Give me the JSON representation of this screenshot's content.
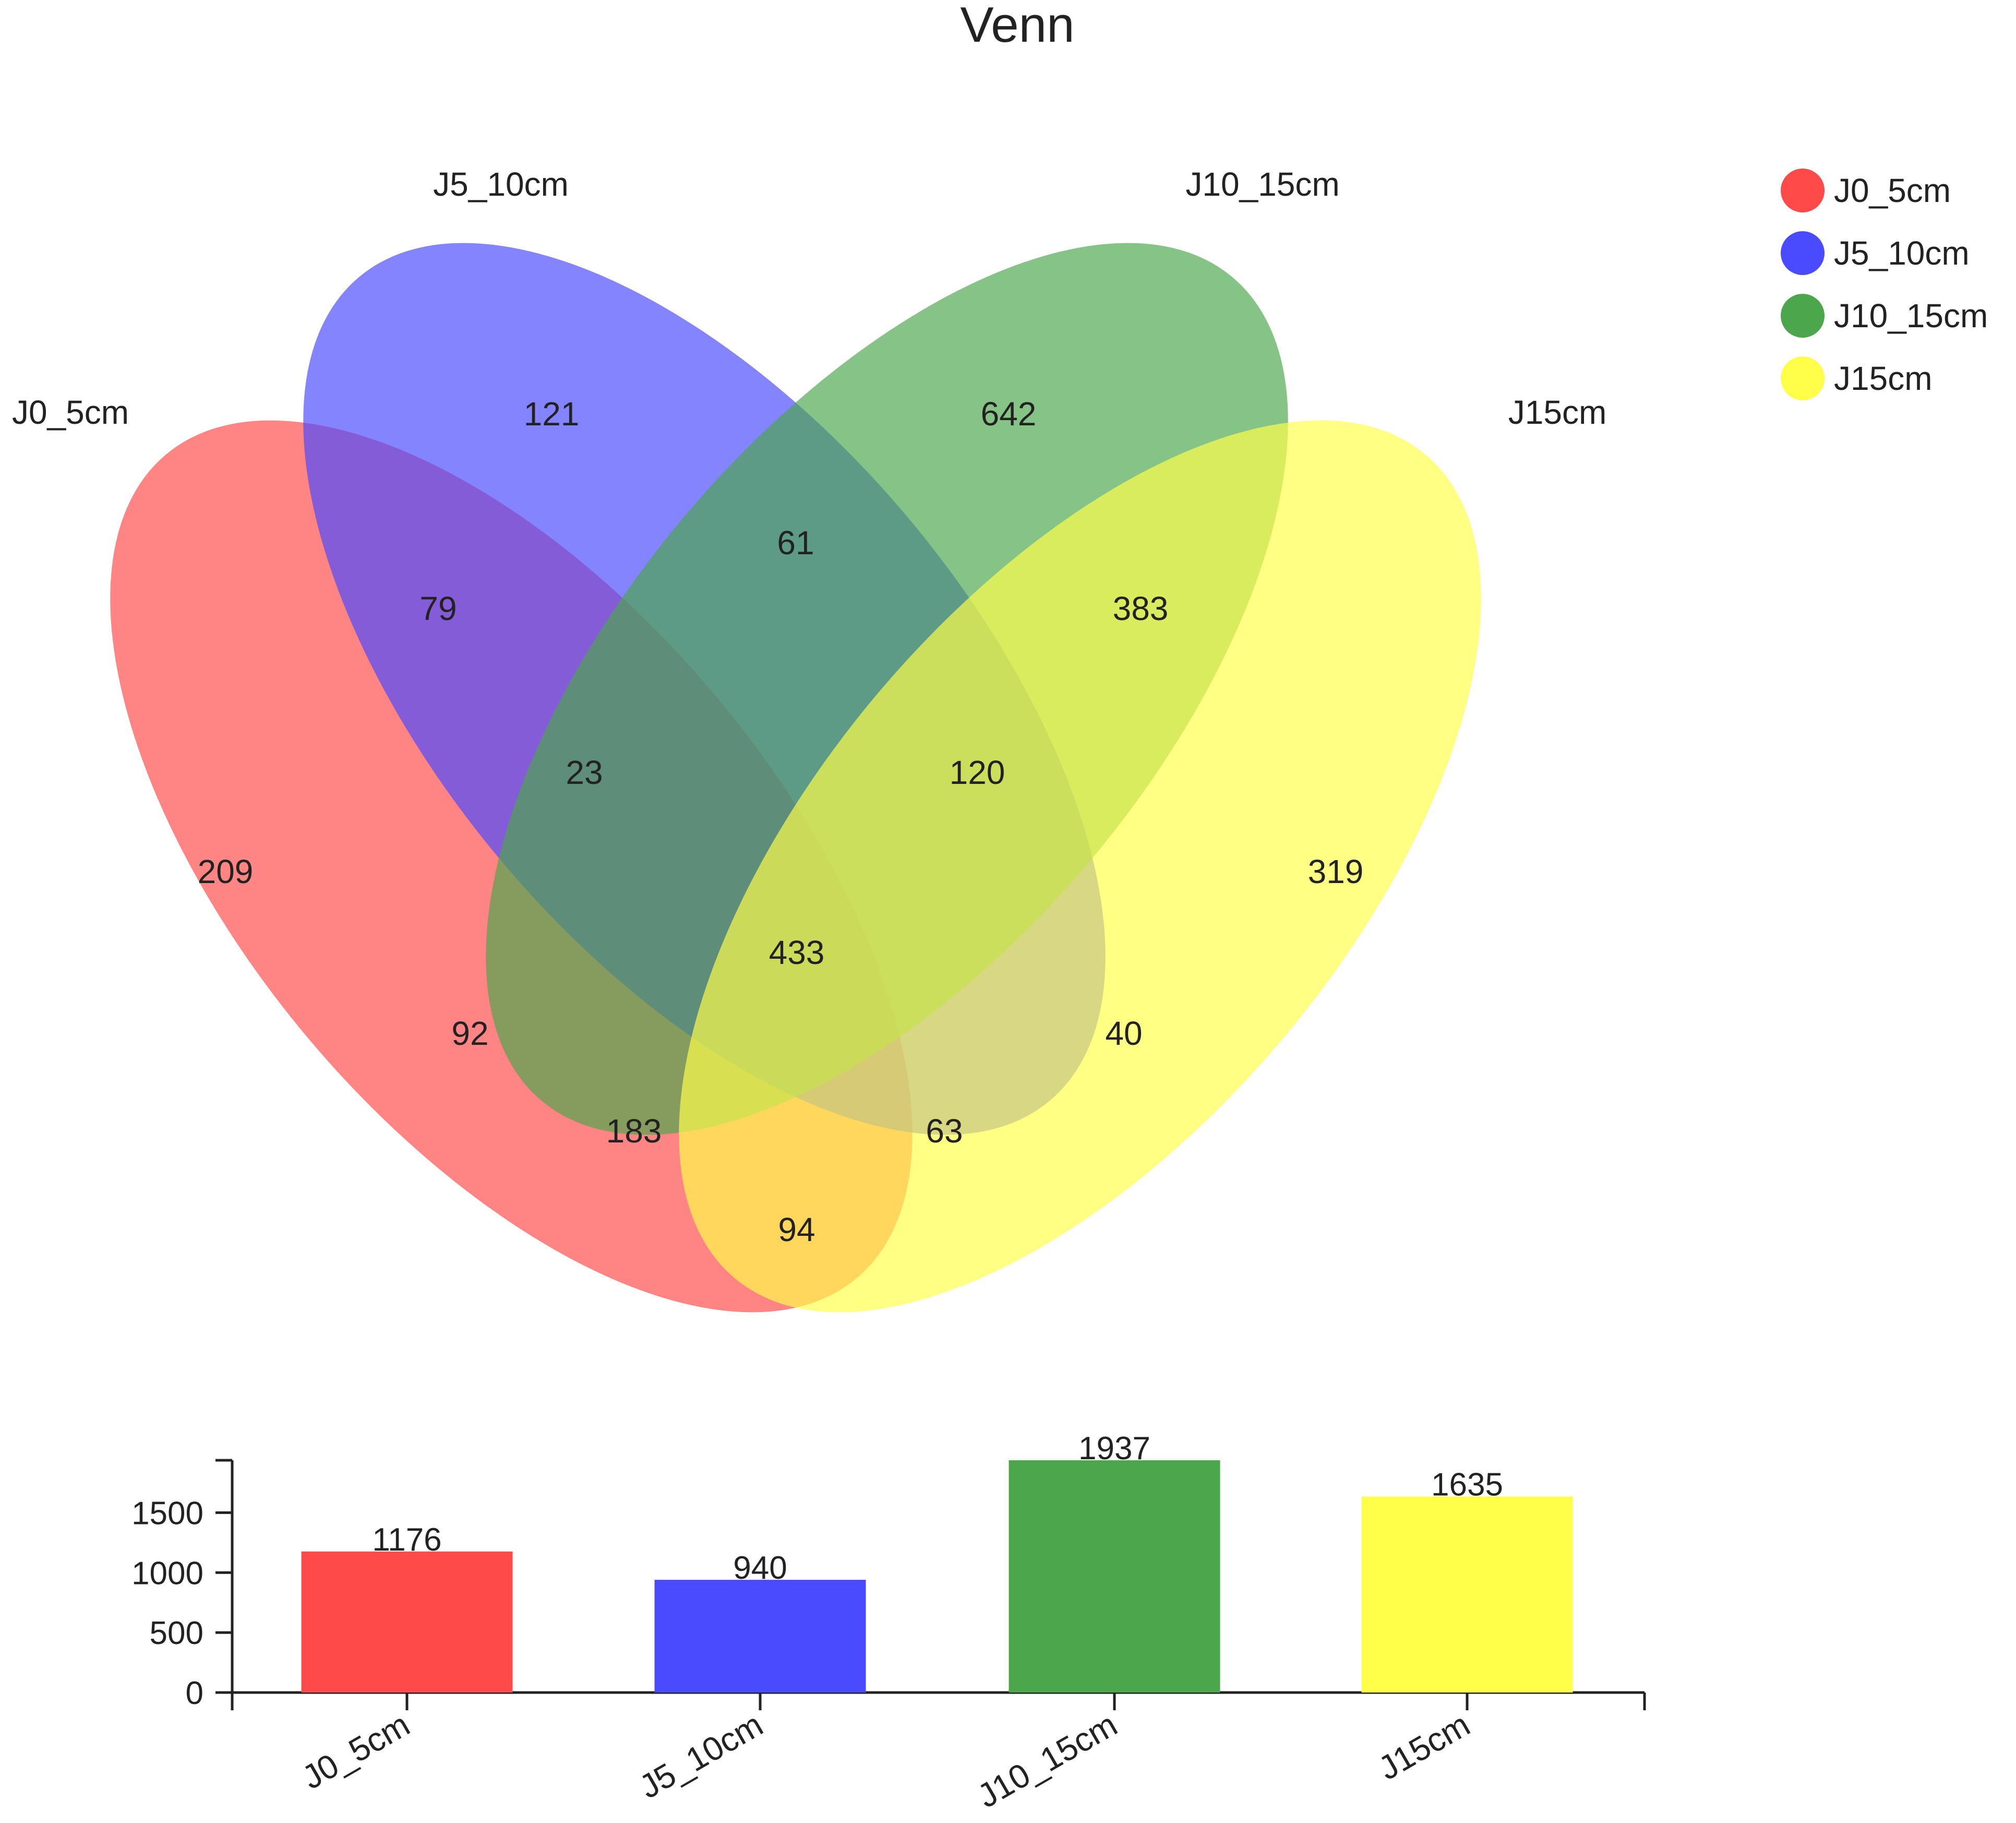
{
  "chart_data": [
    {
      "type": "venn",
      "title": "Venn",
      "sets": [
        {
          "name": "J0_5cm",
          "color": "#ff4a4a"
        },
        {
          "name": "J5_10cm",
          "color": "#4a4aff"
        },
        {
          "name": "J10_15cm",
          "color": "#4ca64c"
        },
        {
          "name": "J15cm",
          "color": "#ffff4a"
        }
      ],
      "regions": [
        {
          "sets": [
            "J5_10cm"
          ],
          "value": 121
        },
        {
          "sets": [
            "J10_15cm"
          ],
          "value": 642
        },
        {
          "sets": [
            "J5_10cm",
            "J10_15cm"
          ],
          "value": 61
        },
        {
          "sets": [
            "J0_5cm",
            "J5_10cm"
          ],
          "value": 79
        },
        {
          "sets": [
            "J10_15cm",
            "J15cm"
          ],
          "value": 383
        },
        {
          "sets": [
            "J0_5cm",
            "J5_10cm",
            "J10_15cm"
          ],
          "value": 23
        },
        {
          "sets": [
            "J5_10cm",
            "J10_15cm",
            "J15cm"
          ],
          "value": 120
        },
        {
          "sets": [
            "J0_5cm"
          ],
          "value": 209
        },
        {
          "sets": [
            "J15cm"
          ],
          "value": 319
        },
        {
          "sets": [
            "J0_5cm",
            "J5_10cm",
            "J10_15cm",
            "J15cm"
          ],
          "value": 433
        },
        {
          "sets": [
            "J0_5cm",
            "J10_15cm"
          ],
          "value": 92
        },
        {
          "sets": [
            "J5_10cm",
            "J15cm"
          ],
          "value": 40
        },
        {
          "sets": [
            "J0_5cm",
            "J10_15cm",
            "J15cm"
          ],
          "value": 183
        },
        {
          "sets": [
            "J0_5cm",
            "J5_10cm",
            "J15cm"
          ],
          "value": 63
        },
        {
          "sets": [
            "J0_5cm",
            "J15cm"
          ],
          "value": 94
        }
      ],
      "legend": {
        "position": "top-right",
        "items": [
          "J0_5cm",
          "J5_10cm",
          "J10_15cm",
          "J15cm"
        ]
      }
    },
    {
      "type": "bar",
      "categories": [
        "J0_5cm",
        "J5_10cm",
        "J10_15cm",
        "J15cm"
      ],
      "values": [
        1176,
        940,
        1937,
        1635
      ],
      "colors": [
        "#ff4a4a",
        "#4a4aff",
        "#4ca64c",
        "#ffff4a"
      ],
      "yticks": [
        0,
        500,
        1000,
        1500
      ],
      "ylim": [
        0,
        1937
      ],
      "grid": false
    }
  ]
}
